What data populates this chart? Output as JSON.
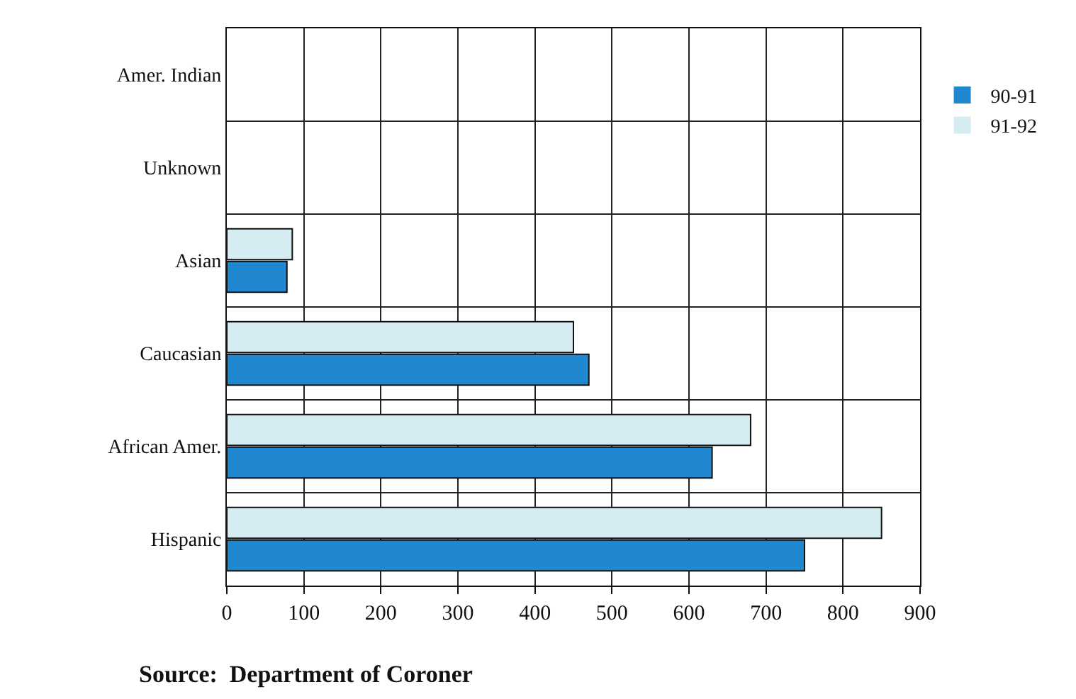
{
  "chart_data": {
    "type": "bar",
    "orientation": "horizontal",
    "categories": [
      "Amer. Indian",
      "Unknown",
      "Asian",
      "Caucasian",
      "African Amer.",
      "Hispanic"
    ],
    "series": [
      {
        "name": "90-91",
        "color": "#1f88d0",
        "values": [
          0,
          0,
          78,
          470,
          630,
          750
        ]
      },
      {
        "name": "91-92",
        "color": "#d4ecf2",
        "values": [
          0,
          0,
          85,
          450,
          680,
          850
        ]
      }
    ],
    "xlim": [
      0,
      900
    ],
    "xticks": [
      0,
      100,
      200,
      300,
      400,
      500,
      600,
      700,
      800,
      900
    ],
    "grid": true,
    "legend": "top right",
    "annotations": [
      "Source:  Department of Coroner"
    ]
  }
}
